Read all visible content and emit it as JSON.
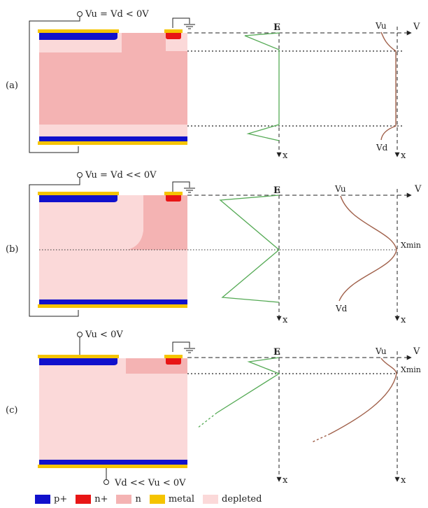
{
  "panels": [
    {
      "tag": "(a)",
      "vu_label": "Vu = Vd < 0V",
      "vd_label": "",
      "e_axis": "E",
      "v_axis": "V",
      "x_axis": "x",
      "pot_top": "Vu",
      "pot_bottom": "Vd",
      "xmin": ""
    },
    {
      "tag": "(b)",
      "vu_label": "Vu = Vd << 0V",
      "vd_label": "",
      "e_axis": "E",
      "v_axis": "V",
      "x_axis": "x",
      "pot_top": "Vu",
      "pot_bottom": "Vd",
      "xmin": "Xmin"
    },
    {
      "tag": "(c)",
      "vu_label": "Vu < 0V",
      "vd_label": "Vd << Vu < 0V",
      "e_axis": "E",
      "v_axis": "V",
      "x_axis": "x",
      "pot_top": "Vu",
      "pot_bottom": "",
      "xmin": "Xmin"
    }
  ],
  "legend": [
    {
      "label": "p+",
      "color": "#1111cc"
    },
    {
      "label": "n+",
      "color": "#e81515"
    },
    {
      "label": "n",
      "color": "#f4b3b3"
    },
    {
      "label": "metal",
      "color": "#f5c400"
    },
    {
      "label": "depleted",
      "color": "#fbd9d9"
    }
  ],
  "colors": {
    "n": "#f4b3b3",
    "depleted": "#fbd9d9",
    "p_plus": "#1111cc",
    "n_plus": "#e81515",
    "metal": "#f5c400",
    "field_curve": "#55aa55",
    "potential_curve": "#a0604a"
  }
}
